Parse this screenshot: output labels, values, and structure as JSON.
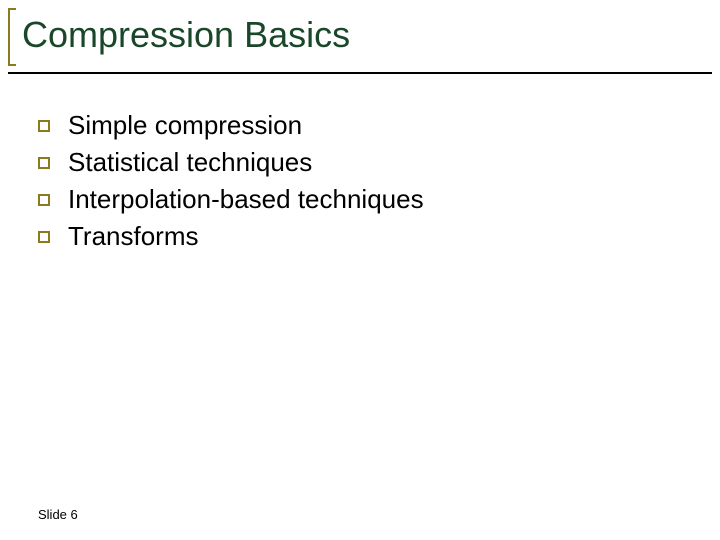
{
  "slide": {
    "title": "Compression Basics",
    "title_color": "#1a472a",
    "title_fontsize": 36,
    "accent_color": "#8b7a1e",
    "underline_color": "#000000",
    "background_color": "#ffffff",
    "bullets": [
      {
        "text": "Simple compression"
      },
      {
        "text": "Statistical techniques"
      },
      {
        "text": "Interpolation-based techniques"
      },
      {
        "text": "Transforms"
      }
    ],
    "bullet_fontsize": 26,
    "bullet_text_color": "#000000",
    "bullet_border_color": "#8b7a1e",
    "footer": "Slide 6",
    "footer_fontsize": 13
  }
}
